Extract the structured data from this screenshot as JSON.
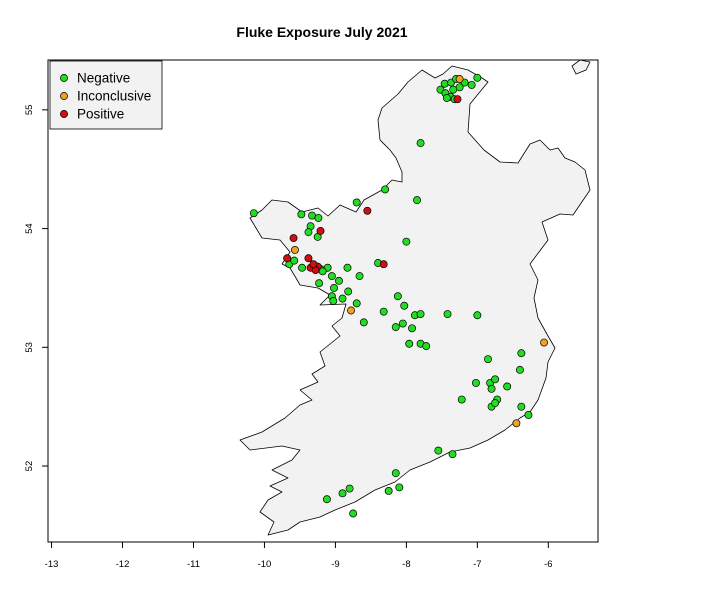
{
  "chart_data": {
    "type": "scatter",
    "title": "Fluke Exposure July 2021",
    "xlabel": "",
    "ylabel": "",
    "xlim": [
      -13.05,
      -5.3
    ],
    "ylim": [
      51.36,
      55.42
    ],
    "x_ticks": [
      "-13",
      "-12",
      "-11",
      "-10",
      "-9",
      "-8",
      "-7",
      "-6"
    ],
    "y_ticks": [
      "52",
      "53",
      "54",
      "55"
    ],
    "grid": false,
    "legend_position": "top-left",
    "colors": {
      "Negative": "#22dd22",
      "Inconclusive": "#f2a020",
      "Positive": "#d01010",
      "land": "#f2f2f2"
    },
    "series": [
      {
        "name": "Negative",
        "points": [
          [
            -7.52,
            55.17
          ],
          [
            -7.45,
            55.14
          ],
          [
            -7.38,
            55.11
          ],
          [
            -7.32,
            55.09
          ],
          [
            -7.43,
            55.1
          ],
          [
            -7.46,
            55.22
          ],
          [
            -7.37,
            55.23
          ],
          [
            -7.3,
            55.26
          ],
          [
            -7.18,
            55.23
          ],
          [
            -7.08,
            55.21
          ],
          [
            -7.0,
            55.27
          ],
          [
            -7.25,
            55.19
          ],
          [
            -7.34,
            55.17
          ],
          [
            -7.8,
            54.72
          ],
          [
            -8.3,
            54.33
          ],
          [
            -7.85,
            54.24
          ],
          [
            -8.7,
            54.22
          ],
          [
            -10.15,
            54.13
          ],
          [
            -9.48,
            54.12
          ],
          [
            -9.33,
            54.11
          ],
          [
            -9.24,
            54.09
          ],
          [
            -9.35,
            54.02
          ],
          [
            -9.38,
            53.97
          ],
          [
            -9.25,
            53.93
          ],
          [
            -8.0,
            53.89
          ],
          [
            -9.65,
            53.7
          ],
          [
            -9.58,
            53.73
          ],
          [
            -9.47,
            53.67
          ],
          [
            -9.21,
            53.66
          ],
          [
            -9.11,
            53.67
          ],
          [
            -8.83,
            53.67
          ],
          [
            -9.18,
            53.64
          ],
          [
            -9.05,
            53.6
          ],
          [
            -8.95,
            53.56
          ],
          [
            -9.23,
            53.54
          ],
          [
            -9.02,
            53.5
          ],
          [
            -8.82,
            53.47
          ],
          [
            -8.66,
            53.6
          ],
          [
            -8.4,
            53.71
          ],
          [
            -9.05,
            53.43
          ],
          [
            -8.9,
            53.41
          ],
          [
            -9.03,
            53.39
          ],
          [
            -8.7,
            53.37
          ],
          [
            -8.12,
            53.43
          ],
          [
            -8.03,
            53.35
          ],
          [
            -8.32,
            53.3
          ],
          [
            -7.88,
            53.27
          ],
          [
            -7.8,
            53.28
          ],
          [
            -7.42,
            53.28
          ],
          [
            -7.0,
            53.27
          ],
          [
            -8.6,
            53.21
          ],
          [
            -8.05,
            53.2
          ],
          [
            -8.15,
            53.17
          ],
          [
            -7.92,
            53.16
          ],
          [
            -7.8,
            53.03
          ],
          [
            -7.72,
            53.01
          ],
          [
            -7.96,
            53.03
          ],
          [
            -6.85,
            52.9
          ],
          [
            -6.38,
            52.95
          ],
          [
            -6.4,
            52.81
          ],
          [
            -6.58,
            52.67
          ],
          [
            -6.82,
            52.7
          ],
          [
            -6.75,
            52.73
          ],
          [
            -6.8,
            52.65
          ],
          [
            -6.72,
            52.56
          ],
          [
            -7.02,
            52.7
          ],
          [
            -6.8,
            52.5
          ],
          [
            -6.75,
            52.53
          ],
          [
            -7.22,
            52.56
          ],
          [
            -6.38,
            52.5
          ],
          [
            -6.28,
            52.43
          ],
          [
            -7.55,
            52.13
          ],
          [
            -7.35,
            52.1
          ],
          [
            -8.15,
            51.94
          ],
          [
            -8.1,
            51.82
          ],
          [
            -8.25,
            51.79
          ],
          [
            -8.8,
            51.81
          ],
          [
            -8.9,
            51.77
          ],
          [
            -9.12,
            51.72
          ],
          [
            -8.75,
            51.6
          ]
        ]
      },
      {
        "name": "Inconclusive",
        "points": [
          [
            -7.25,
            55.26
          ],
          [
            -9.57,
            53.82
          ],
          [
            -8.78,
            53.31
          ],
          [
            -6.06,
            53.04
          ],
          [
            -6.45,
            52.36
          ]
        ]
      },
      {
        "name": "Positive",
        "points": [
          [
            -7.28,
            55.09
          ],
          [
            -8.55,
            54.15
          ],
          [
            -9.59,
            53.92
          ],
          [
            -9.21,
            53.98
          ],
          [
            -9.68,
            53.75
          ],
          [
            -9.38,
            53.75
          ],
          [
            -9.35,
            53.67
          ],
          [
            -9.25,
            53.68
          ],
          [
            -9.28,
            53.65
          ],
          [
            -9.31,
            53.7
          ],
          [
            -8.32,
            53.7
          ]
        ]
      }
    ]
  },
  "legend": {
    "items": [
      {
        "label": "Negative"
      },
      {
        "label": "Inconclusive"
      },
      {
        "label": "Positive"
      }
    ]
  }
}
